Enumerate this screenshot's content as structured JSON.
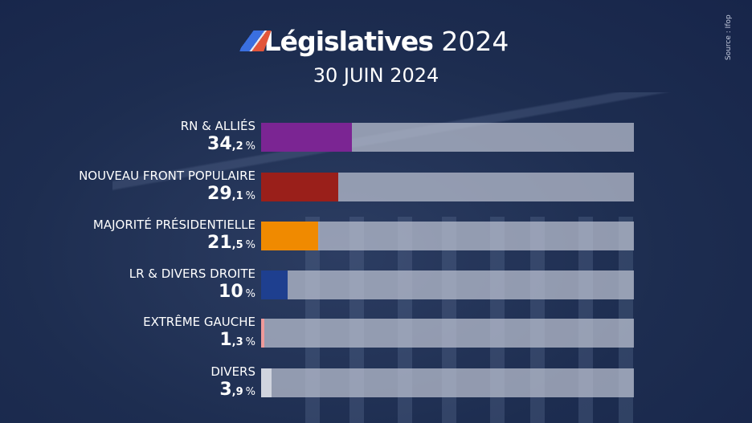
{
  "header": {
    "title_bold": "Législatives",
    "title_year": "2024",
    "date": "30 JUIN 2024",
    "source": "Source : Ifop"
  },
  "chart_data": {
    "type": "bar",
    "orientation": "horizontal",
    "title": "Législatives 2024",
    "subtitle": "30 JUIN 2024",
    "categories": [
      "RN & ALLIÉS",
      "NOUVEAU FRONT POPULAIRE",
      "MAJORITÉ PRÉSIDENTIELLE",
      "LR & DIVERS DROITE",
      "EXTRÊME GAUCHE",
      "DIVERS"
    ],
    "values": [
      34.2,
      29.1,
      21.5,
      10,
      1.3,
      3.9
    ],
    "value_labels": [
      {
        "int": "34",
        "dec": ",2",
        "unit": "%"
      },
      {
        "int": "29",
        "dec": ",1",
        "unit": "%"
      },
      {
        "int": "21",
        "dec": ",5",
        "unit": "%"
      },
      {
        "int": "10",
        "dec": "",
        "unit": "%"
      },
      {
        "int": "1",
        "dec": ",3",
        "unit": "%"
      },
      {
        "int": "3",
        "dec": ",9",
        "unit": "%"
      }
    ],
    "colors": [
      "#7b2593",
      "#9a1f1a",
      "#f08a00",
      "#1e3f8f",
      "#ee9a9a",
      "#d0d4de"
    ],
    "xlim": [
      0,
      140
    ],
    "grid": false,
    "legend": "none"
  }
}
